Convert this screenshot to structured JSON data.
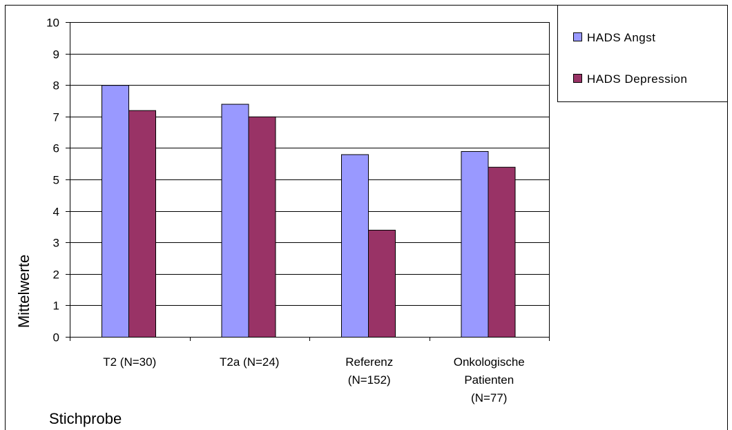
{
  "chart_data": {
    "type": "bar",
    "categories": [
      [
        "T2 (N=30)"
      ],
      [
        "T2a (N=24)"
      ],
      [
        "Referenz",
        "(N=152)"
      ],
      [
        "Onkologische",
        "Patienten",
        "(N=77)"
      ]
    ],
    "series": [
      {
        "name": "HADS Angst",
        "values": [
          8.0,
          7.4,
          5.8,
          5.9
        ]
      },
      {
        "name": "HADS Depression",
        "values": [
          7.2,
          7.0,
          3.4,
          5.4
        ]
      }
    ],
    "xlabel": "Stichprobe",
    "ylabel": "Mittelwerte",
    "ylim": [
      0,
      10
    ],
    "yticks": [
      0,
      1,
      2,
      3,
      4,
      5,
      6,
      7,
      8,
      9,
      10
    ],
    "grid": true,
    "legend": "top-right",
    "colors": {
      "series": [
        "#9999ff",
        "#993366"
      ],
      "gridline": "#000000",
      "border": "#000000"
    }
  }
}
